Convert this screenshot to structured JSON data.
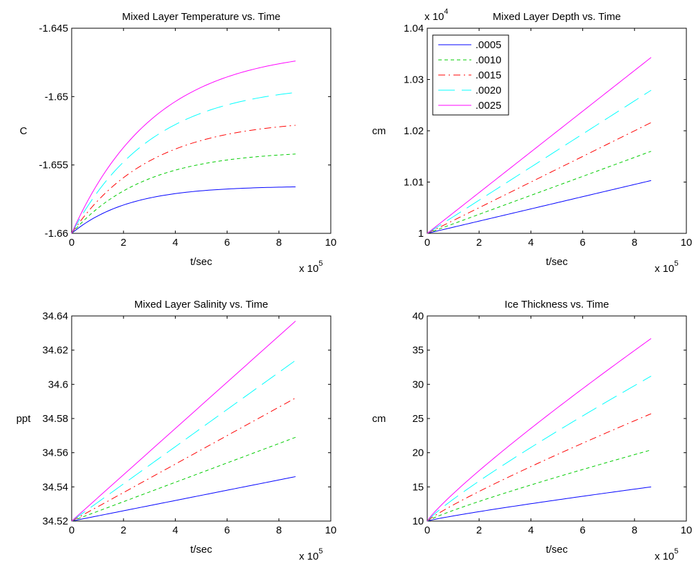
{
  "colors": {
    "s1": "#0000ff",
    "s2": "#00cc00",
    "s3": "#ff0000",
    "s4": "#00ffff",
    "s5": "#ff00ff"
  },
  "chart_data": [
    {
      "type": "line",
      "title": "Mixed Layer Temperature vs. Time",
      "xlabel": "t/sec",
      "ylabel": "C",
      "x_exponent": "x 10",
      "x_exponent_power": "5",
      "xlim": [
        0,
        1000000
      ],
      "ylim": [
        -1.66,
        -1.645
      ],
      "xticks": [
        0,
        200000,
        400000,
        600000,
        800000,
        1000000
      ],
      "xtick_labels": [
        "0",
        "2",
        "4",
        "6",
        "8",
        "10"
      ],
      "yticks": [
        -1.66,
        -1.655,
        -1.65,
        -1.645
      ],
      "ytick_labels": [
        "-1.66",
        "-1.655",
        "-1.65",
        "-1.645"
      ],
      "legend": null,
      "series": [
        {
          "name": ".0005",
          "shape": "sat",
          "x_end": 864000,
          "y_start": -1.66,
          "y_end": -1.6566,
          "tau": 220000
        },
        {
          "name": ".0010",
          "shape": "sat",
          "x_end": 864000,
          "y_start": -1.66,
          "y_end": -1.6542,
          "tau": 280000
        },
        {
          "name": ".0015",
          "shape": "sat",
          "x_end": 864000,
          "y_start": -1.66,
          "y_end": -1.6521,
          "tau": 300000
        },
        {
          "name": ".0020",
          "shape": "sat",
          "x_end": 864000,
          "y_start": -1.66,
          "y_end": -1.6497,
          "tau": 310000
        },
        {
          "name": ".0025",
          "shape": "sat",
          "x_end": 864000,
          "y_start": -1.66,
          "y_end": -1.6474,
          "tau": 320000
        }
      ]
    },
    {
      "type": "line",
      "title": "Mixed Layer Depth vs. Time",
      "xlabel": "t/sec",
      "ylabel": "cm",
      "x_exponent": "x 10",
      "x_exponent_power": "5",
      "y_exponent": "x 10",
      "y_exponent_power": "4",
      "xlim": [
        0,
        1000000
      ],
      "ylim": [
        1.0,
        1.04
      ],
      "xticks": [
        0,
        200000,
        400000,
        600000,
        800000,
        1000000
      ],
      "xtick_labels": [
        "0",
        "2",
        "4",
        "6",
        "8",
        "10"
      ],
      "yticks": [
        1.0,
        1.01,
        1.02,
        1.03,
        1.04
      ],
      "ytick_labels": [
        "1",
        "1.01",
        "1.02",
        "1.03",
        "1.04"
      ],
      "legend": "top-left",
      "series": [
        {
          "name": ".0005",
          "shape": "lin",
          "x_end": 864000,
          "y_start": 1.0,
          "y_end": 1.0103
        },
        {
          "name": ".0010",
          "shape": "lin",
          "x_end": 864000,
          "y_start": 1.0,
          "y_end": 1.016
        },
        {
          "name": ".0015",
          "shape": "lin",
          "x_end": 864000,
          "y_start": 1.0,
          "y_end": 1.0216
        },
        {
          "name": ".0020",
          "shape": "lin",
          "x_end": 864000,
          "y_start": 1.0,
          "y_end": 1.0279
        },
        {
          "name": ".0025",
          "shape": "lin",
          "x_end": 864000,
          "y_start": 1.0,
          "y_end": 1.0343
        }
      ]
    },
    {
      "type": "line",
      "title": "Mixed Layer Salinity vs. Time",
      "xlabel": "t/sec",
      "ylabel": "ppt",
      "x_exponent": "x 10",
      "x_exponent_power": "5",
      "xlim": [
        0,
        1000000
      ],
      "ylim": [
        34.52,
        34.64
      ],
      "xticks": [
        0,
        200000,
        400000,
        600000,
        800000,
        1000000
      ],
      "xtick_labels": [
        "0",
        "2",
        "4",
        "6",
        "8",
        "10"
      ],
      "yticks": [
        34.52,
        34.54,
        34.56,
        34.58,
        34.6,
        34.62,
        34.64
      ],
      "ytick_labels": [
        "34.52",
        "34.54",
        "34.56",
        "34.58",
        "34.6",
        "34.62",
        "34.64"
      ],
      "legend": null,
      "series": [
        {
          "name": ".0005",
          "shape": "lin",
          "x_end": 864000,
          "y_start": 34.52,
          "y_end": 34.546
        },
        {
          "name": ".0010",
          "shape": "lin",
          "x_end": 864000,
          "y_start": 34.52,
          "y_end": 34.569
        },
        {
          "name": ".0015",
          "shape": "lin",
          "x_end": 864000,
          "y_start": 34.52,
          "y_end": 34.592
        },
        {
          "name": ".0020",
          "shape": "lin",
          "x_end": 864000,
          "y_start": 34.52,
          "y_end": 34.614
        },
        {
          "name": ".0025",
          "shape": "lin",
          "x_end": 864000,
          "y_start": 34.52,
          "y_end": 34.637
        }
      ]
    },
    {
      "type": "line",
      "title": "Ice Thickness vs. Time",
      "xlabel": "t/sec",
      "ylabel": "cm",
      "x_exponent": "x 10",
      "x_exponent_power": "5",
      "xlim": [
        0,
        1000000
      ],
      "ylim": [
        10,
        40
      ],
      "xticks": [
        0,
        200000,
        400000,
        600000,
        800000,
        1000000
      ],
      "xtick_labels": [
        "0",
        "2",
        "4",
        "6",
        "8",
        "10"
      ],
      "yticks": [
        10,
        15,
        20,
        25,
        30,
        35,
        40
      ],
      "ytick_labels": [
        "10",
        "15",
        "20",
        "25",
        "30",
        "35",
        "40"
      ],
      "legend": null,
      "series": [
        {
          "name": ".0005",
          "shape": "sqrt",
          "x_end": 864000,
          "y_start": 10,
          "y_end": 15.0
        },
        {
          "name": ".0010",
          "shape": "sqrt",
          "x_end": 864000,
          "y_start": 10,
          "y_end": 20.4
        },
        {
          "name": ".0015",
          "shape": "sqrt",
          "x_end": 864000,
          "y_start": 10,
          "y_end": 25.7
        },
        {
          "name": ".0020",
          "shape": "sqrt",
          "x_end": 864000,
          "y_start": 10,
          "y_end": 31.2
        },
        {
          "name": ".0025",
          "shape": "sqrt",
          "x_end": 864000,
          "y_start": 10,
          "y_end": 36.7
        }
      ]
    }
  ]
}
